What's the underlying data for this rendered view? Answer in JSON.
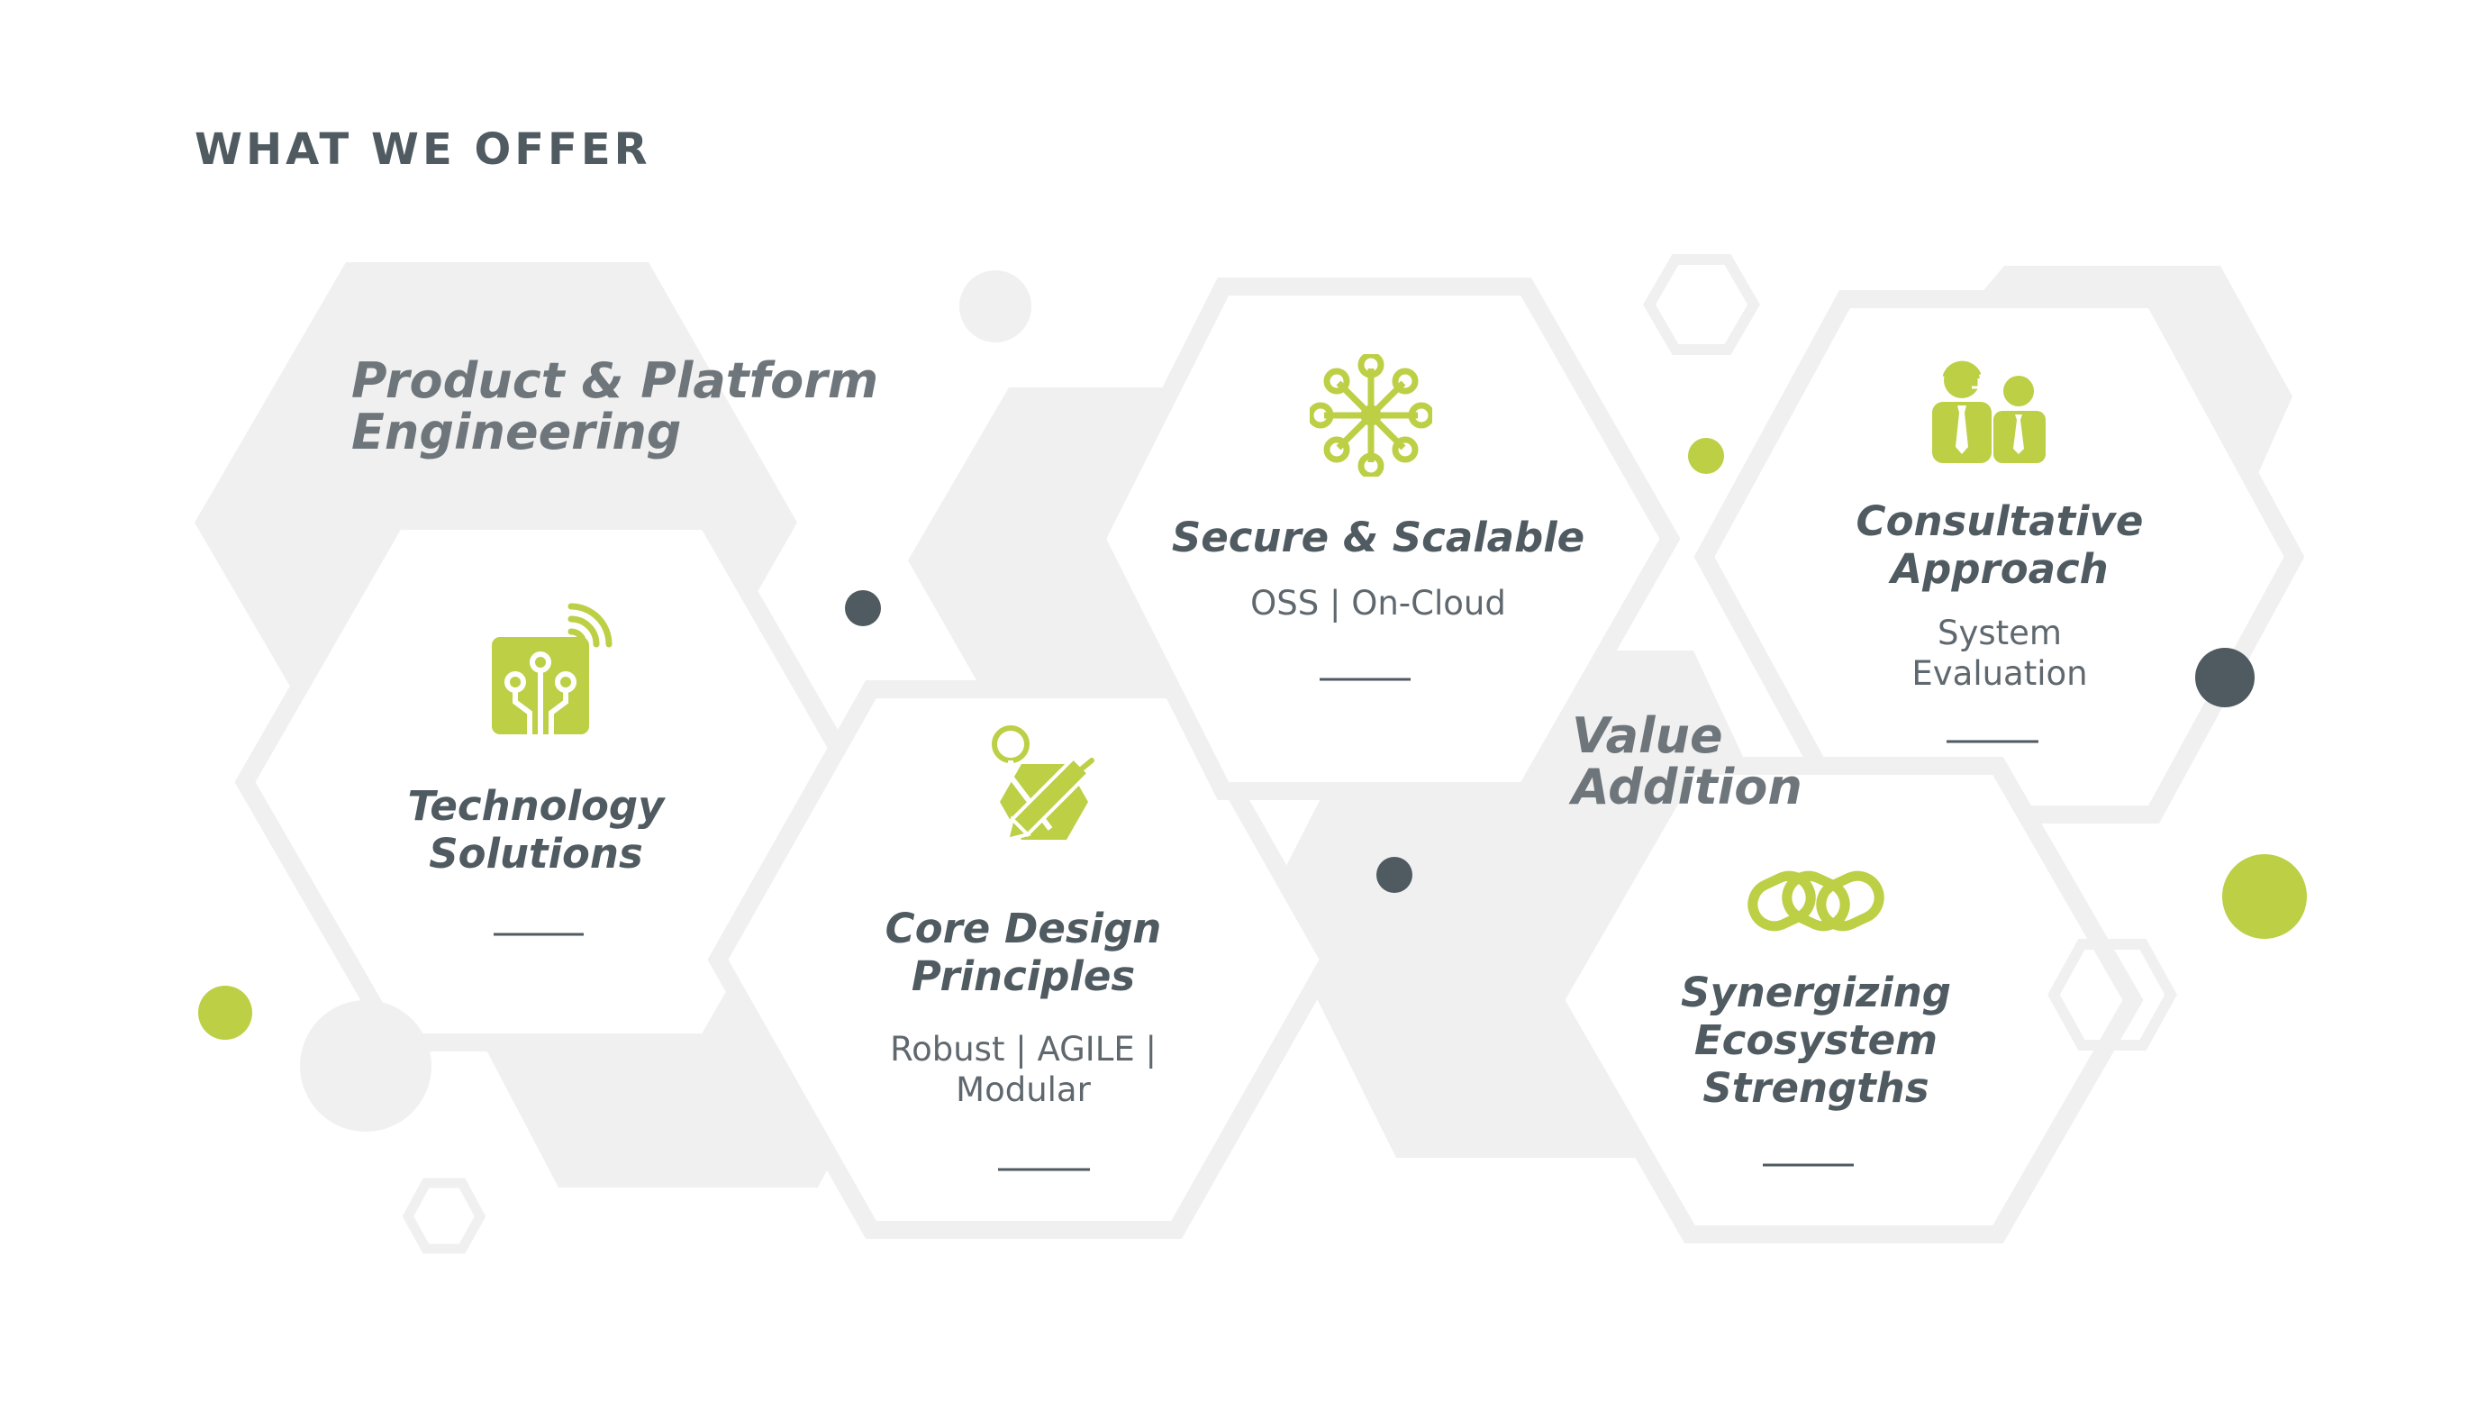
{
  "page": {
    "title": "WHAT WE OFFER"
  },
  "sections": [
    {
      "id": "product_platform",
      "line1": "Product & Platform",
      "line2": "Engineering"
    },
    {
      "id": "value_addition",
      "line1": "Value",
      "line2": "Addition"
    }
  ],
  "cards": [
    {
      "id": "technology",
      "icon": "circuit-chip-icon",
      "title_line1": "Technology",
      "title_line2": "Solutions",
      "subtitle_line1": "",
      "subtitle_line2": ""
    },
    {
      "id": "core_design",
      "icon": "design-pencil-icon",
      "title_line1": "Core Design",
      "title_line2": "Principles",
      "subtitle_line1": "Robust | AGILE |",
      "subtitle_line2": "Modular"
    },
    {
      "id": "secure",
      "icon": "network-nodes-icon",
      "title_line1": "Secure & Scalable",
      "title_line2": "",
      "subtitle_line1": "OSS | On-Cloud",
      "subtitle_line2": ""
    },
    {
      "id": "consultative",
      "icon": "consultants-icon",
      "title_line1": "Consultative",
      "title_line2": "Approach",
      "subtitle_line1": "System",
      "subtitle_line2": "Evaluation"
    },
    {
      "id": "synergizing",
      "icon": "chain-links-icon",
      "title_line1": "Synergizing",
      "title_line2": "Ecosystem",
      "subtitle_line1": "Strengths",
      "subtitle_line2": ""
    }
  ],
  "colors": {
    "accent_green": "#bccf45",
    "dark_slate": "#4f5a61",
    "light_gray": "#f0f0f0",
    "background": "#ffffff"
  }
}
